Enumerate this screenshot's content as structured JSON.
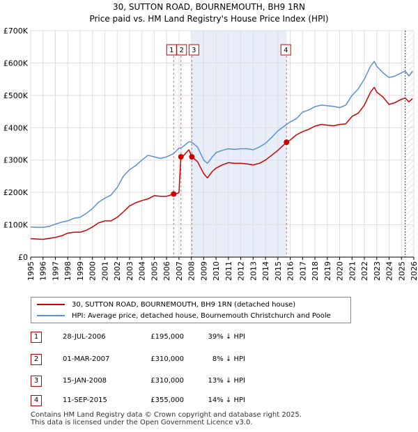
{
  "chart_data": {
    "type": "line",
    "title": "30, SUTTON ROAD, BOURNEMOUTH, BH9 1RN",
    "subtitle": "Price paid vs. HM Land Registry's House Price Index (HPI)",
    "xlim": [
      1995,
      2026
    ],
    "ylim": [
      0,
      700000
    ],
    "x_ticks": [
      "1995",
      "1996",
      "1997",
      "1998",
      "1999",
      "2000",
      "2001",
      "2002",
      "2003",
      "2004",
      "2005",
      "2006",
      "2007",
      "2008",
      "2009",
      "2010",
      "2011",
      "2012",
      "2013",
      "2014",
      "2015",
      "2016",
      "2017",
      "2018",
      "2019",
      "2020",
      "2021",
      "2022",
      "2023",
      "2024",
      "2025",
      "2026"
    ],
    "y_ticks": [
      {
        "value": 0,
        "label": "£0"
      },
      {
        "value": 100000,
        "label": "£100K"
      },
      {
        "value": 200000,
        "label": "£200K"
      },
      {
        "value": 300000,
        "label": "£300K"
      },
      {
        "value": 400000,
        "label": "£400K"
      },
      {
        "value": 500000,
        "label": "£500K"
      },
      {
        "value": 600000,
        "label": "£600K"
      },
      {
        "value": 700000,
        "label": "£700K"
      }
    ],
    "grid": true,
    "shaded_region": {
      "x_start": 2008.04,
      "x_end": 2015.7
    },
    "future_region": {
      "x_start": 2025.3
    },
    "series": [
      {
        "name": "30, SUTTON ROAD, BOURNEMOUTH, BH9 1RN (detached house)",
        "color": "#cc0000",
        "points": [
          [
            1995.0,
            57000
          ],
          [
            1995.5,
            56000
          ],
          [
            1996.0,
            55000
          ],
          [
            1996.5,
            58000
          ],
          [
            1997.0,
            61000
          ],
          [
            1997.5,
            66000
          ],
          [
            1998.0,
            74000
          ],
          [
            1998.5,
            77000
          ],
          [
            1999.0,
            77000
          ],
          [
            1999.5,
            83000
          ],
          [
            2000.0,
            93000
          ],
          [
            2000.5,
            106000
          ],
          [
            2001.0,
            112000
          ],
          [
            2001.5,
            112000
          ],
          [
            2002.0,
            123000
          ],
          [
            2002.5,
            140000
          ],
          [
            2003.0,
            158000
          ],
          [
            2003.5,
            168000
          ],
          [
            2004.0,
            175000
          ],
          [
            2004.5,
            180000
          ],
          [
            2005.0,
            190000
          ],
          [
            2005.5,
            188000
          ],
          [
            2006.0,
            188000
          ],
          [
            2006.57,
            195000
          ],
          [
            2006.9,
            197000
          ],
          [
            2007.0,
            200000
          ],
          [
            2007.16,
            310000
          ],
          [
            2007.4,
            315000
          ],
          [
            2007.8,
            332000
          ],
          [
            2008.04,
            310000
          ],
          [
            2008.5,
            295000
          ],
          [
            2009.0,
            258000
          ],
          [
            2009.3,
            245000
          ],
          [
            2009.7,
            265000
          ],
          [
            2010.0,
            275000
          ],
          [
            2010.5,
            285000
          ],
          [
            2011.0,
            292000
          ],
          [
            2011.5,
            290000
          ],
          [
            2012.0,
            290000
          ],
          [
            2012.5,
            288000
          ],
          [
            2013.0,
            285000
          ],
          [
            2013.5,
            290000
          ],
          [
            2014.0,
            300000
          ],
          [
            2014.5,
            315000
          ],
          [
            2015.0,
            330000
          ],
          [
            2015.7,
            355000
          ],
          [
            2016.0,
            362000
          ],
          [
            2016.5,
            378000
          ],
          [
            2017.0,
            388000
          ],
          [
            2017.5,
            395000
          ],
          [
            2018.0,
            405000
          ],
          [
            2018.5,
            410000
          ],
          [
            2019.0,
            408000
          ],
          [
            2019.5,
            406000
          ],
          [
            2020.0,
            410000
          ],
          [
            2020.5,
            412000
          ],
          [
            2021.0,
            435000
          ],
          [
            2021.5,
            445000
          ],
          [
            2022.0,
            470000
          ],
          [
            2022.5,
            510000
          ],
          [
            2022.8,
            525000
          ],
          [
            2023.0,
            510000
          ],
          [
            2023.5,
            495000
          ],
          [
            2024.0,
            472000
          ],
          [
            2024.5,
            478000
          ],
          [
            2025.0,
            488000
          ],
          [
            2025.3,
            492000
          ],
          [
            2025.6,
            480000
          ],
          [
            2025.9,
            490000
          ]
        ]
      },
      {
        "name": "HPI: Average price, detached house, Bournemouth Christchurch and Poole",
        "color": "#5b8fd4",
        "points": [
          [
            1995.0,
            93000
          ],
          [
            1995.5,
            92000
          ],
          [
            1996.0,
            92000
          ],
          [
            1996.5,
            95000
          ],
          [
            1997.0,
            102000
          ],
          [
            1997.5,
            108000
          ],
          [
            1998.0,
            112000
          ],
          [
            1998.5,
            120000
          ],
          [
            1999.0,
            123000
          ],
          [
            1999.5,
            135000
          ],
          [
            2000.0,
            150000
          ],
          [
            2000.5,
            170000
          ],
          [
            2001.0,
            182000
          ],
          [
            2001.5,
            192000
          ],
          [
            2002.0,
            215000
          ],
          [
            2002.5,
            250000
          ],
          [
            2003.0,
            270000
          ],
          [
            2003.5,
            283000
          ],
          [
            2004.0,
            300000
          ],
          [
            2004.5,
            315000
          ],
          [
            2005.0,
            310000
          ],
          [
            2005.5,
            305000
          ],
          [
            2006.0,
            310000
          ],
          [
            2006.57,
            320000
          ],
          [
            2007.0,
            337000
          ],
          [
            2007.16,
            337000
          ],
          [
            2007.5,
            347000
          ],
          [
            2007.8,
            357000
          ],
          [
            2008.04,
            355000
          ],
          [
            2008.5,
            340000
          ],
          [
            2009.0,
            300000
          ],
          [
            2009.3,
            290000
          ],
          [
            2009.7,
            310000
          ],
          [
            2010.0,
            323000
          ],
          [
            2010.5,
            330000
          ],
          [
            2011.0,
            335000
          ],
          [
            2011.5,
            333000
          ],
          [
            2012.0,
            335000
          ],
          [
            2012.5,
            335000
          ],
          [
            2013.0,
            332000
          ],
          [
            2013.5,
            340000
          ],
          [
            2014.0,
            352000
          ],
          [
            2014.5,
            370000
          ],
          [
            2015.0,
            390000
          ],
          [
            2015.7,
            410000
          ],
          [
            2016.0,
            418000
          ],
          [
            2016.5,
            428000
          ],
          [
            2017.0,
            448000
          ],
          [
            2017.5,
            455000
          ],
          [
            2018.0,
            465000
          ],
          [
            2018.5,
            470000
          ],
          [
            2019.0,
            468000
          ],
          [
            2019.5,
            466000
          ],
          [
            2020.0,
            462000
          ],
          [
            2020.5,
            470000
          ],
          [
            2021.0,
            500000
          ],
          [
            2021.5,
            520000
          ],
          [
            2022.0,
            550000
          ],
          [
            2022.5,
            590000
          ],
          [
            2022.8,
            605000
          ],
          [
            2023.0,
            590000
          ],
          [
            2023.5,
            570000
          ],
          [
            2024.0,
            555000
          ],
          [
            2024.5,
            560000
          ],
          [
            2025.0,
            570000
          ],
          [
            2025.3,
            575000
          ],
          [
            2025.6,
            560000
          ],
          [
            2025.9,
            575000
          ]
        ]
      }
    ],
    "markers": [
      {
        "label": "1",
        "x": 2006.57,
        "y": 195000
      },
      {
        "label": "2",
        "x": 2007.16,
        "y": 310000
      },
      {
        "label": "3",
        "x": 2008.04,
        "y": 310000
      },
      {
        "label": "4",
        "x": 2015.7,
        "y": 355000
      }
    ]
  },
  "legend": {
    "items": [
      {
        "label": "30, SUTTON ROAD, BOURNEMOUTH, BH9 1RN (detached house)",
        "color": "#cc0000"
      },
      {
        "label": "HPI: Average price, detached house, Bournemouth Christchurch and Poole",
        "color": "#5b8fd4"
      }
    ]
  },
  "transactions": [
    {
      "num": "1",
      "date": "28-JUL-2006",
      "price": "£195,000",
      "hpi": "39% ↓ HPI"
    },
    {
      "num": "2",
      "date": "01-MAR-2007",
      "price": "£310,000",
      "hpi": "8% ↓ HPI"
    },
    {
      "num": "3",
      "date": "15-JAN-2008",
      "price": "£310,000",
      "hpi": "13% ↓ HPI"
    },
    {
      "num": "4",
      "date": "11-SEP-2015",
      "price": "£355,000",
      "hpi": "14% ↓ HPI"
    }
  ],
  "footer": {
    "line1": "Contains HM Land Registry data © Crown copyright and database right 2025.",
    "line2": "This data is licensed under the Open Government Licence v3.0."
  }
}
